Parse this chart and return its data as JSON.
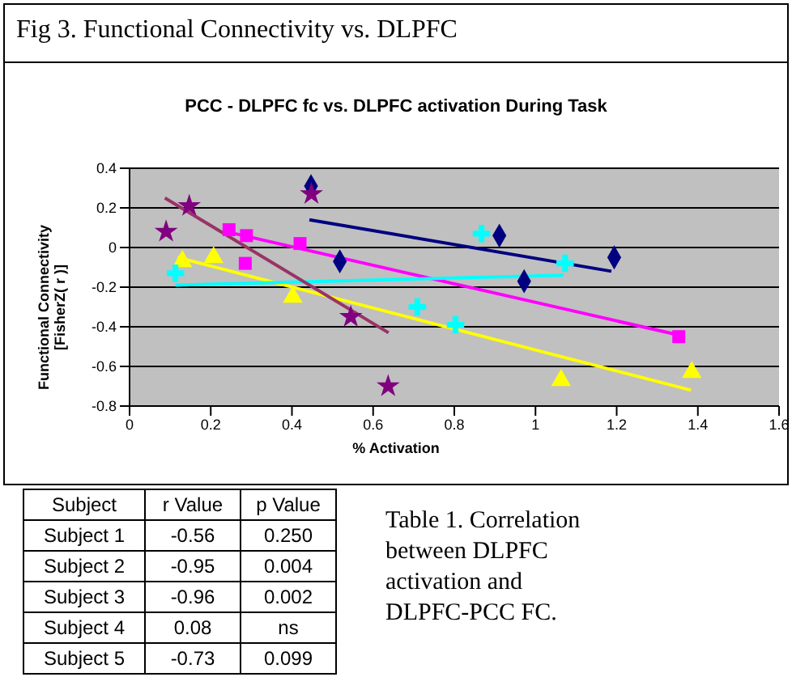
{
  "chart_data": {
    "type": "scatter",
    "title": "Fig 3. Functional Connectivity vs. DLPFC",
    "subtitle": "PCC - DLPFC fc vs. DLPFC activation During Task",
    "xlabel": "% Activation",
    "ylabel": "Functional Connectivity [FisherZ( r )]",
    "xlim": [
      0,
      1.6
    ],
    "xticks": [
      0,
      0.2,
      0.4,
      0.6,
      0.8,
      1,
      1.2,
      1.4,
      1.6
    ],
    "ylim": [
      -0.8,
      0.4
    ],
    "yticks": [
      -0.8,
      -0.6,
      -0.4,
      -0.2,
      0,
      0.2,
      0.4
    ],
    "grid": "y",
    "series": [
      {
        "marker": "diamond",
        "color": "#000080",
        "x": [
          0.447,
          0.518,
          0.911,
          0.972,
          1.194
        ],
        "values": [
          0.31,
          -0.07,
          0.06,
          -0.17,
          -0.05
        ]
      },
      {
        "marker": "square",
        "color": "#ff00ff",
        "x": [
          0.245,
          0.285,
          0.288,
          0.42,
          1.353
        ],
        "values": [
          0.09,
          -0.08,
          0.06,
          0.02,
          -0.45
        ]
      },
      {
        "marker": "triangle",
        "color": "#ffff00",
        "x": [
          0.13,
          0.207,
          0.402,
          1.063,
          1.385
        ],
        "values": [
          -0.07,
          -0.05,
          -0.25,
          -0.67,
          -0.63
        ]
      },
      {
        "marker": "cross",
        "color": "#00ffff",
        "x": [
          0.113,
          0.709,
          0.803,
          0.867,
          1.073
        ],
        "values": [
          -0.13,
          -0.3,
          -0.39,
          0.07,
          -0.08
        ]
      },
      {
        "marker": "star",
        "color": "#800080",
        "x": [
          0.09,
          0.147,
          0.448,
          0.545,
          0.637
        ],
        "values": [
          0.08,
          0.21,
          0.27,
          -0.35,
          -0.7
        ]
      },
      {
        "type": "line",
        "color": "#000080",
        "x": [
          0.443,
          1.187
        ],
        "values": [
          0.14,
          -0.12
        ]
      },
      {
        "type": "line",
        "color": "#ff00ff",
        "x": [
          0.238,
          1.349
        ],
        "values": [
          0.08,
          -0.44
        ]
      },
      {
        "type": "line",
        "color": "#ffff00",
        "x": [
          0.118,
          1.383
        ],
        "values": [
          -0.05,
          -0.72
        ]
      },
      {
        "type": "line",
        "color": "#00ffff",
        "x": [
          0.113,
          1.069
        ],
        "values": [
          -0.19,
          -0.14
        ]
      },
      {
        "type": "line",
        "color": "#993366",
        "x": [
          0.087,
          0.638
        ],
        "values": [
          0.25,
          -0.43
        ]
      }
    ],
    "annotations": [
      "Subject",
      "r Value",
      "p Value",
      "Subject 1",
      "-0.56",
      "0.250",
      "Subject 2",
      "-0.95",
      "0.004",
      "Subject 3",
      "-0.96",
      "0.002",
      "Subject 4",
      "0.08",
      "ns",
      "Subject 5",
      "-0.73",
      "0.099",
      "Table 1. Correlation between DLPFC activation and DLPFC-PCC FC."
    ]
  }
}
